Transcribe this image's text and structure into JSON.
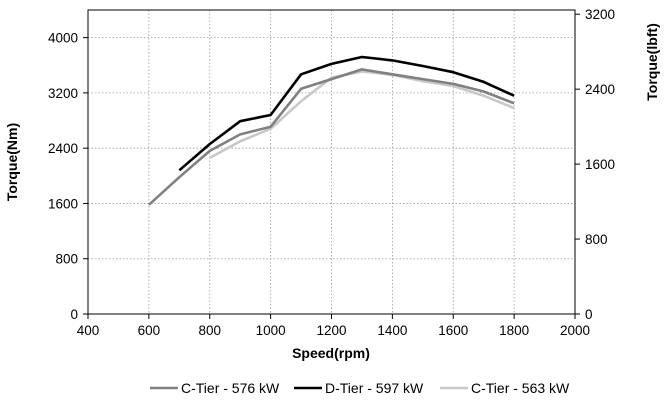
{
  "chart_data": {
    "type": "line",
    "xlabel": "Speed(rpm)",
    "ylabel_left": "Torque(Nm)",
    "ylabel_right": "Torque(lbft)",
    "xlim": [
      400,
      2000
    ],
    "ylim_left": [
      0,
      4400
    ],
    "ylim_right": [
      0,
      3245
    ],
    "x_ticks": [
      "400",
      "600",
      "800",
      "1000",
      "1200",
      "1400",
      "1600",
      "1800",
      "2000"
    ],
    "y_left_ticks": [
      "0",
      "800",
      "1600",
      "2400",
      "3200",
      "4000"
    ],
    "y_right_ticks": [
      "0",
      "800",
      "1600",
      "2400",
      "3200"
    ],
    "grid": true,
    "legend_position": "bottom",
    "series": [
      {
        "name": "C-Tier - 576 kW",
        "color": "#808080",
        "x": [
          600,
          700,
          800,
          900,
          1000,
          1100,
          1200,
          1300,
          1400,
          1500,
          1600,
          1700,
          1800
        ],
        "values": [
          1580,
          1980,
          2360,
          2600,
          2710,
          3260,
          3400,
          3540,
          3470,
          3400,
          3330,
          3220,
          3050
        ]
      },
      {
        "name": "D-Tier - 597 kW",
        "color": "#000000",
        "x": [
          700,
          800,
          900,
          1000,
          1100,
          1200,
          1300,
          1400,
          1500,
          1600,
          1700,
          1800
        ],
        "values": [
          2080,
          2460,
          2790,
          2880,
          3470,
          3620,
          3720,
          3670,
          3590,
          3500,
          3360,
          3160
        ]
      },
      {
        "name": "C-Tier - 563 kW",
        "color": "#c8c8c8",
        "x": [
          800,
          900,
          1000,
          1100,
          1200,
          1300,
          1400,
          1500,
          1600,
          1700,
          1800
        ],
        "values": [
          2260,
          2500,
          2680,
          3080,
          3420,
          3510,
          3460,
          3370,
          3300,
          3160,
          2980
        ]
      }
    ]
  }
}
